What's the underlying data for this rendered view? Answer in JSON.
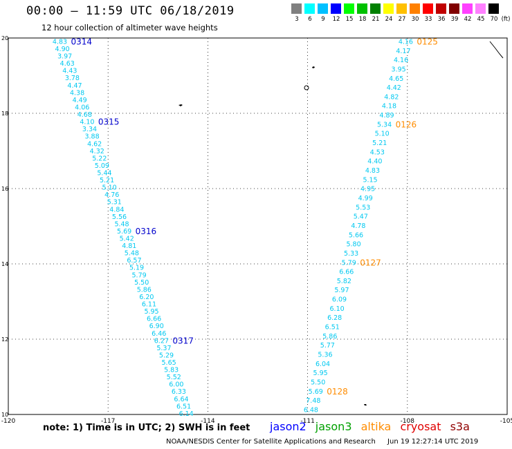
{
  "title": "00:00 – 11:59 UTC 06/18/2019",
  "subtitle": "12 hour collection of altimeter wave heights",
  "scale": {
    "colors": [
      "#808080",
      "#00ffff",
      "#00c0ff",
      "#0000ff",
      "#00ff00",
      "#00c000",
      "#008000",
      "#ffff00",
      "#ffc000",
      "#ff8000",
      "#ff0000",
      "#c00000",
      "#800000",
      "#ff40ff",
      "#ff80ff",
      "#000000"
    ],
    "labels": [
      "3",
      "6",
      "9",
      "12",
      "15",
      "18",
      "21",
      "24",
      "27",
      "30",
      "33",
      "36",
      "39",
      "42",
      "45",
      "70"
    ],
    "unit": "(ft)"
  },
  "map": {
    "lon_range": [
      -120,
      -105
    ],
    "lat_range": [
      10,
      20
    ],
    "lon_ticks": [
      -120,
      -117,
      -114,
      -111,
      -108,
      -105
    ],
    "lat_ticks": [
      10,
      12,
      14,
      16,
      18,
      20
    ],
    "lon_tick_labels": [
      "-120",
      "-117",
      "-114",
      "-111",
      "-108",
      "-105"
    ],
    "lat_tick_labels": [
      "10",
      "12",
      "14",
      "16",
      "18",
      "20"
    ]
  },
  "tracks": [
    {
      "satellite": "jason2",
      "label_color": "#0000cc",
      "value_color": "#00c8f0",
      "start": {
        "lon": -118.45,
        "lat": 19.9
      },
      "end": {
        "lon": -114.65,
        "lat": 10.02
      },
      "values": [
        "4.83",
        "4.90",
        "3.97",
        "4.63",
        "4.43",
        "3.78",
        "4.47",
        "4.38",
        "4.49",
        "4.06",
        "4.68",
        "4.10",
        "3.34",
        "3.88",
        "4.62",
        "4.32",
        "5.22",
        "5.09",
        "5.44",
        "5.21",
        "5.10",
        "4.76",
        "5.31",
        "4.84",
        "5.56",
        "5.48",
        "5.69",
        "5.42",
        "4.81",
        "5.48",
        "6.57",
        "5.19",
        "5.79",
        "5.50",
        "5.86",
        "6.20",
        "6.11",
        "5.95",
        "6.66",
        "6.90",
        "6.46",
        "6.27",
        "5.37",
        "5.29",
        "5.65",
        "5.83",
        "5.52",
        "6.00",
        "6.33",
        "6.64",
        "6.51",
        "6.14"
      ],
      "time_labels": [
        {
          "text": "0314",
          "index": 0
        },
        {
          "text": "0315",
          "index": 11
        },
        {
          "text": "0316",
          "index": 26
        },
        {
          "text": "0317",
          "index": 41
        }
      ]
    },
    {
      "satellite": "altika",
      "label_color": "#ff8c00",
      "value_color": "#00c8f0",
      "start": {
        "lon": -108.05,
        "lat": 19.9
      },
      "end": {
        "lon": -110.9,
        "lat": 10.12
      },
      "values": [
        "4.16",
        "4.17",
        "4.16",
        "3.95",
        "4.65",
        "4.42",
        "4.82",
        "4.18",
        "4.89",
        "5.34",
        "5.10",
        "5.21",
        "4.53",
        "4.40",
        "4.83",
        "5.15",
        "4.95",
        "4.99",
        "5.53",
        "5.47",
        "4.78",
        "5.66",
        "5.80",
        "5.33",
        "5.79",
        "6.66",
        "5.82",
        "5.97",
        "6.09",
        "6.10",
        "6.28",
        "6.51",
        "5.86",
        "5.77",
        "5.36",
        "6.04",
        "5.95",
        "5.50",
        "5.69",
        "7.48",
        "6.48"
      ],
      "time_labels": [
        {
          "text": "0125",
          "index": 0
        },
        {
          "text": "0126",
          "index": 9
        },
        {
          "text": "0127",
          "index": 24
        },
        {
          "text": "0128",
          "index": 38
        }
      ]
    }
  ],
  "note": "note: 1) Time is in UTC; 2) SWH is in feet",
  "legend": [
    {
      "name": "jason2",
      "color": "#0000ff"
    },
    {
      "name": "jason3",
      "color": "#00a000"
    },
    {
      "name": "altika",
      "color": "#ff8c00"
    },
    {
      "name": "cryosat",
      "color": "#e00000"
    },
    {
      "name": "s3a",
      "color": "#900000"
    }
  ],
  "credit": "NOAA/NESDIS Center for Satellite Applications and Research",
  "timestamp": "Jun 19 12:27:14 UTC 2019"
}
